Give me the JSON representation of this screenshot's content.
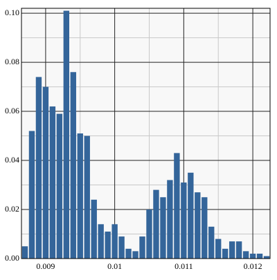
{
  "chart_data": {
    "type": "histogram",
    "bins": [
      0.00865,
      0.00875,
      0.00885,
      0.00895,
      0.00905,
      0.00915,
      0.00925,
      0.00935,
      0.00945,
      0.00955,
      0.00965,
      0.00975,
      0.00985,
      0.00995,
      0.01005,
      0.01015,
      0.01025,
      0.01035,
      0.01045,
      0.01055,
      0.01065,
      0.01075,
      0.01085,
      0.01095,
      0.01105,
      0.01115,
      0.01125,
      0.01135,
      0.01145,
      0.01155,
      0.01165,
      0.01175,
      0.01185,
      0.01195,
      0.01205,
      0.01215,
      0.01225
    ],
    "counts": [
      0.005,
      0.052,
      0.074,
      0.07,
      0.062,
      0.059,
      0.101,
      0.076,
      0.051,
      0.05,
      0.024,
      0.014,
      0.011,
      0.014,
      0.009,
      0.004,
      0.003,
      0.009,
      0.02,
      0.028,
      0.025,
      0.032,
      0.043,
      0.031,
      0.035,
      0.027,
      0.025,
      0.013,
      0.008,
      0.004,
      0.007,
      0.007,
      0.003,
      0.002,
      0.002,
      0.001
    ],
    "color": "#34659a",
    "xlim": [
      0.00865,
      0.01225
    ],
    "ylim": [
      0,
      0.102
    ],
    "xticks": [
      0.009,
      0.01,
      0.011,
      0.012
    ],
    "yticks": [
      {
        "value": 0,
        "label": "0.00"
      },
      {
        "value": 0.02,
        "label": "0.02"
      },
      {
        "value": 0.04,
        "label": "0.04"
      },
      {
        "value": 0.06,
        "label": "0.06"
      },
      {
        "value": 0.08,
        "label": "0.08"
      },
      {
        "value": 0.1,
        "label": "0.10"
      }
    ],
    "minor_xticks": [
      0.0095,
      0.0105,
      0.0115
    ],
    "minor_yticks": [
      0.01,
      0.03,
      0.05,
      0.07,
      0.09
    ],
    "grid": true
  }
}
